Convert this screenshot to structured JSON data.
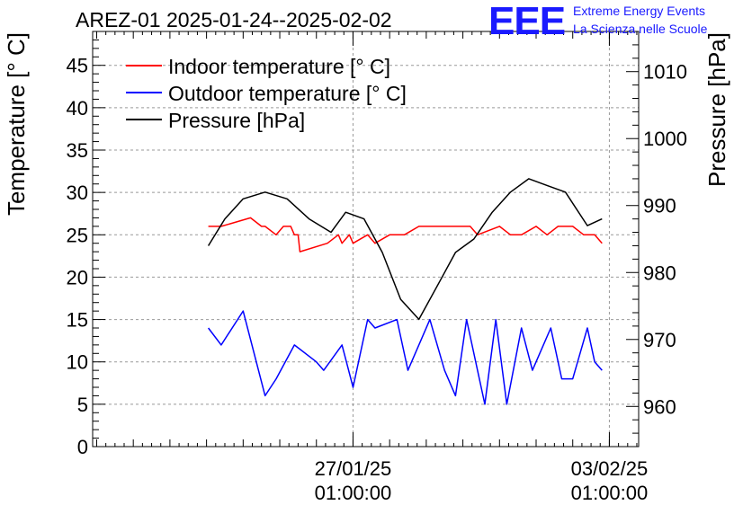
{
  "chart_data": {
    "type": "line",
    "title": "AREZ-01 2025-01-24--2025-02-02",
    "ylabel": "Temperature [° C]",
    "y2label": "Pressure [hPa]",
    "ylim": [
      0,
      49
    ],
    "y2lim": [
      954,
      1016
    ],
    "yticks": [
      0,
      5,
      10,
      15,
      20,
      25,
      30,
      35,
      40,
      45
    ],
    "y2ticks": [
      960,
      970,
      980,
      990,
      1000,
      1010
    ],
    "x_tick_labels": [
      {
        "date": "27/01/25",
        "time": "01:00:00",
        "day": 3.0
      },
      {
        "date": "03/02/25",
        "time": "01:00:00",
        "day": 10.0
      }
    ],
    "xlim_days": [
      -4.11,
      10.8
    ],
    "grid": true,
    "legend_position": "top-left",
    "series": [
      {
        "name": "Indoor temperature [° C]",
        "color": "#ff0000",
        "axis": "left",
        "x": [
          -0.95,
          -0.6,
          0.2,
          0.5,
          0.6,
          0.9,
          1.1,
          1.3,
          1.4,
          1.5,
          1.55,
          2.3,
          2.6,
          2.7,
          2.9,
          3.0,
          3.4,
          3.6,
          4.0,
          4.4,
          4.8,
          5.5,
          6.2,
          6.4,
          7.0,
          7.3,
          7.6,
          8.0,
          8.3,
          8.6,
          9.0,
          9.3,
          9.6,
          9.8
        ],
        "y": [
          26,
          26,
          27,
          26,
          26,
          25,
          26,
          26,
          25,
          25,
          23,
          24,
          25,
          24,
          25,
          24,
          25,
          24,
          25,
          25,
          26,
          26,
          26,
          25,
          26,
          25,
          25,
          26,
          25,
          26,
          26,
          25,
          25,
          24
        ]
      },
      {
        "name": "Outdoor temperature [° C]",
        "color": "#0000ff",
        "axis": "left",
        "x": [
          -0.95,
          -0.6,
          0.0,
          0.6,
          0.9,
          1.4,
          2.0,
          2.2,
          2.7,
          3.0,
          3.4,
          3.6,
          4.2,
          4.5,
          5.1,
          5.5,
          5.8,
          6.1,
          6.6,
          6.9,
          7.2,
          7.6,
          7.9,
          8.4,
          8.7,
          9.0,
          9.4,
          9.6,
          9.8
        ],
        "y": [
          14,
          12,
          16,
          6,
          8,
          12,
          10,
          9,
          12,
          7,
          15,
          14,
          15,
          9,
          15,
          9,
          6,
          15,
          5,
          15,
          5,
          14,
          9,
          14,
          8,
          8,
          14,
          10,
          9
        ],
        "values_note_removed": true
      },
      {
        "name": "Pressure [hPa]",
        "color": "#000000",
        "axis": "right",
        "x": [
          -0.95,
          -0.5,
          0.0,
          0.6,
          1.2,
          1.8,
          2.4,
          2.8,
          3.3,
          3.8,
          4.3,
          4.8,
          5.4,
          5.8,
          6.3,
          6.8,
          7.3,
          7.8,
          8.3,
          8.8,
          9.4,
          9.8
        ],
        "y": [
          984,
          988,
          991,
          992,
          991,
          988,
          986,
          989,
          988,
          983,
          976,
          973,
          979,
          983,
          985,
          989,
          992,
          994,
          993,
          992,
          987,
          988
        ]
      }
    ]
  }
}
